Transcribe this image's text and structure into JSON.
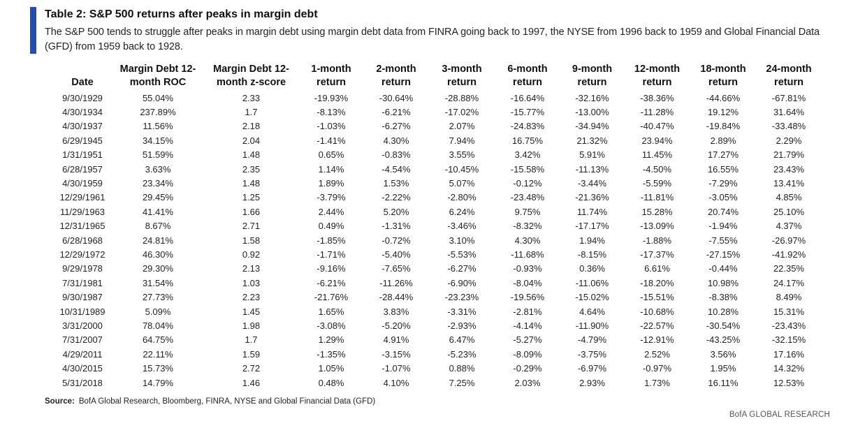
{
  "title": "Table 2: S&P 500 returns after peaks in margin debt",
  "subtitle": "The S&P 500 tends to struggle after peaks in margin debt using margin debt data from FINRA going back to 1997, the NYSE from 1996 back to 1959 and Global Financial Data (GFD) from 1959 back to 1928.",
  "columns": [
    "Date",
    "Margin Debt 12-month ROC",
    "Margin Debt 12-month z-score",
    "1-month return",
    "2-month return",
    "3-month return",
    "6-month return",
    "9-month return",
    "12-month return",
    "18-month return",
    "24-month return"
  ],
  "rows": [
    [
      "9/30/1929",
      "55.04%",
      "2.33",
      "-19.93%",
      "-30.64%",
      "-28.88%",
      "-16.64%",
      "-32.16%",
      "-38.36%",
      "-44.66%",
      "-67.81%"
    ],
    [
      "4/30/1934",
      "237.89%",
      "1.7",
      "-8.13%",
      "-6.21%",
      "-17.02%",
      "-15.77%",
      "-13.00%",
      "-11.28%",
      "19.12%",
      "31.64%"
    ],
    [
      "4/30/1937",
      "11.56%",
      "2.18",
      "-1.03%",
      "-6.27%",
      "2.07%",
      "-24.83%",
      "-34.94%",
      "-40.47%",
      "-19.84%",
      "-33.48%"
    ],
    [
      "6/29/1945",
      "34.15%",
      "2.04",
      "-1.41%",
      "4.30%",
      "7.94%",
      "16.75%",
      "21.32%",
      "23.94%",
      "2.89%",
      "2.29%"
    ],
    [
      "1/31/1951",
      "51.59%",
      "1.48",
      "0.65%",
      "-0.83%",
      "3.55%",
      "3.42%",
      "5.91%",
      "11.45%",
      "17.27%",
      "21.79%"
    ],
    [
      "6/28/1957",
      "3.63%",
      "2.35",
      "1.14%",
      "-4.54%",
      "-10.45%",
      "-15.58%",
      "-11.13%",
      "-4.50%",
      "16.55%",
      "23.43%"
    ],
    [
      "4/30/1959",
      "23.34%",
      "1.48",
      "1.89%",
      "1.53%",
      "5.07%",
      "-0.12%",
      "-3.44%",
      "-5.59%",
      "-7.29%",
      "13.41%"
    ],
    [
      "12/29/1961",
      "29.45%",
      "1.25",
      "-3.79%",
      "-2.22%",
      "-2.80%",
      "-23.48%",
      "-21.36%",
      "-11.81%",
      "-3.05%",
      "4.85%"
    ],
    [
      "11/29/1963",
      "41.41%",
      "1.66",
      "2.44%",
      "5.20%",
      "6.24%",
      "9.75%",
      "11.74%",
      "15.28%",
      "20.74%",
      "25.10%"
    ],
    [
      "12/31/1965",
      "8.67%",
      "2.71",
      "0.49%",
      "-1.31%",
      "-3.46%",
      "-8.32%",
      "-17.17%",
      "-13.09%",
      "-1.94%",
      "4.37%"
    ],
    [
      "6/28/1968",
      "24.81%",
      "1.58",
      "-1.85%",
      "-0.72%",
      "3.10%",
      "4.30%",
      "1.94%",
      "-1.88%",
      "-7.55%",
      "-26.97%"
    ],
    [
      "12/29/1972",
      "46.30%",
      "0.92",
      "-1.71%",
      "-5.40%",
      "-5.53%",
      "-11.68%",
      "-8.15%",
      "-17.37%",
      "-27.15%",
      "-41.92%"
    ],
    [
      "9/29/1978",
      "29.30%",
      "2.13",
      "-9.16%",
      "-7.65%",
      "-6.27%",
      "-0.93%",
      "0.36%",
      "6.61%",
      "-0.44%",
      "22.35%"
    ],
    [
      "7/31/1981",
      "31.54%",
      "1.03",
      "-6.21%",
      "-11.26%",
      "-6.90%",
      "-8.04%",
      "-11.06%",
      "-18.20%",
      "10.98%",
      "24.17%"
    ],
    [
      "9/30/1987",
      "27.73%",
      "2.23",
      "-21.76%",
      "-28.44%",
      "-23.23%",
      "-19.56%",
      "-15.02%",
      "-15.51%",
      "-8.38%",
      "8.49%"
    ],
    [
      "10/31/1989",
      "5.09%",
      "1.45",
      "1.65%",
      "3.83%",
      "-3.31%",
      "-2.81%",
      "4.64%",
      "-10.68%",
      "10.28%",
      "15.31%"
    ],
    [
      "3/31/2000",
      "78.04%",
      "1.98",
      "-3.08%",
      "-5.20%",
      "-2.93%",
      "-4.14%",
      "-11.90%",
      "-22.57%",
      "-30.54%",
      "-23.43%"
    ],
    [
      "7/31/2007",
      "64.75%",
      "1.7",
      "1.29%",
      "4.91%",
      "6.47%",
      "-5.27%",
      "-4.79%",
      "-12.91%",
      "-43.25%",
      "-32.15%"
    ],
    [
      "4/29/2011",
      "22.11%",
      "1.59",
      "-1.35%",
      "-3.15%",
      "-5.23%",
      "-8.09%",
      "-3.75%",
      "2.52%",
      "3.56%",
      "17.16%"
    ],
    [
      "4/30/2015",
      "15.73%",
      "2.72",
      "1.05%",
      "-1.07%",
      "0.88%",
      "-0.29%",
      "-6.97%",
      "-0.97%",
      "1.95%",
      "14.32%"
    ],
    [
      "5/31/2018",
      "14.79%",
      "1.46",
      "0.48%",
      "4.10%",
      "7.25%",
      "2.03%",
      "2.93%",
      "1.73%",
      "16.11%",
      "12.53%"
    ]
  ],
  "source": {
    "label": "Source:",
    "text": "BofA Global Research, Bloomberg, FINRA, NYSE and Global Financial Data (GFD)"
  },
  "brand": "BofA GLOBAL RESEARCH",
  "colors": {
    "accent": "#1f4fb5"
  }
}
